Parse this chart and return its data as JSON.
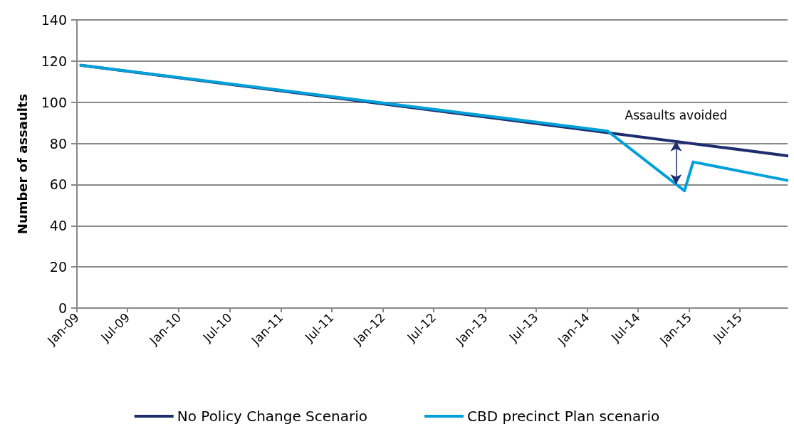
{
  "chart_data": {
    "type": "line",
    "ylabel": "Number of assaults",
    "xlim": [
      "2009-01",
      "2015-12-19"
    ],
    "xticks": [
      {
        "value": "2009-01",
        "label": "Jan-09"
      },
      {
        "value": "2009-07",
        "label": "Jul-09"
      },
      {
        "value": "2010-01",
        "label": "Jan-10"
      },
      {
        "value": "2010-07",
        "label": "Jul-10"
      },
      {
        "value": "2011-01",
        "label": "Jan-11"
      },
      {
        "value": "2011-07",
        "label": "Jul-11"
      },
      {
        "value": "2012-01",
        "label": "Jan-12"
      },
      {
        "value": "2012-07",
        "label": "Jul-12"
      },
      {
        "value": "2013-01",
        "label": "Jan-13"
      },
      {
        "value": "2013-07",
        "label": "Jul-13"
      },
      {
        "value": "2014-01",
        "label": "Jan-14"
      },
      {
        "value": "2014-07",
        "label": "Jul-14"
      },
      {
        "value": "2015-01",
        "label": "Jan-15"
      },
      {
        "value": "2015-07",
        "label": "Jul-15"
      }
    ],
    "ylim": [
      0,
      140
    ],
    "yticks": [
      0,
      20,
      40,
      60,
      80,
      100,
      120,
      140
    ],
    "series": [
      {
        "name": "No Policy Change Scenario",
        "color": "#1f2d6e",
        "x": [
          "2009-01-15",
          "2015-12-19"
        ],
        "values": [
          118,
          74
        ]
      },
      {
        "name": "CBD precinct Plan scenario",
        "color": "#00a0d8",
        "x": [
          "2009-01-15",
          "2014-03-15",
          "2014-12-15",
          "2015-01-15",
          "2015-12-19"
        ],
        "values": [
          118,
          86,
          57,
          71,
          62
        ]
      }
    ],
    "annotations": [
      {
        "text": "Assaults avoided",
        "x": "2014-11-15",
        "y": 81
      }
    ],
    "grid": "y",
    "legend": "bottom",
    "marker": "none",
    "line_style": "solid"
  }
}
